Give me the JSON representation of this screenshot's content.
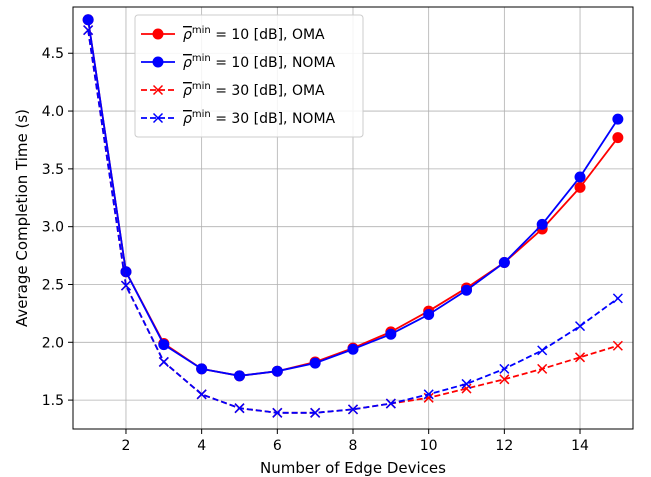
{
  "chart_data": {
    "type": "line",
    "xlabel": "Number of Edge Devices",
    "ylabel": "Average Completion Time (s)",
    "xlim": [
      0.6,
      15.4
    ],
    "ylim": [
      1.25,
      4.9
    ],
    "xticks": [
      2,
      4,
      6,
      8,
      10,
      12,
      14
    ],
    "yticks": [
      1.5,
      2.0,
      2.5,
      3.0,
      3.5,
      4.0,
      4.5
    ],
    "xtick_labels": [
      "2",
      "4",
      "6",
      "8",
      "10",
      "12",
      "14"
    ],
    "ytick_labels": [
      "1.5",
      "2.0",
      "2.5",
      "3.0",
      "3.5",
      "4.0",
      "4.5"
    ],
    "grid": true,
    "legend_position": "top-left",
    "x": [
      1,
      2,
      3,
      4,
      5,
      6,
      7,
      8,
      9,
      10,
      11,
      12,
      13,
      14,
      15
    ],
    "series": [
      {
        "name": "ρ̄ min = 10 [dB], OMA",
        "name_parts": [
          "ρ",
          "min",
          "= 10 [dB], OMA"
        ],
        "color": "#ff0000",
        "marker": "circle",
        "linestyle": "solid",
        "values": [
          4.79,
          2.61,
          1.99,
          1.77,
          1.71,
          1.75,
          1.83,
          1.95,
          2.09,
          2.27,
          2.47,
          2.69,
          2.98,
          3.34,
          3.77
        ]
      },
      {
        "name": "ρ̄ min = 10 [dB], NOMA",
        "name_parts": [
          "ρ",
          "min",
          "= 10 [dB], NOMA"
        ],
        "color": "#0000ff",
        "marker": "circle",
        "linestyle": "solid",
        "values": [
          4.79,
          2.61,
          1.98,
          1.77,
          1.71,
          1.75,
          1.82,
          1.94,
          2.07,
          2.24,
          2.45,
          2.69,
          3.02,
          3.43,
          3.93
        ]
      },
      {
        "name": "ρ̄ min = 30 [dB], OMA",
        "name_parts": [
          "ρ",
          "min",
          "= 30 [dB], OMA"
        ],
        "color": "#ff0000",
        "marker": "x",
        "linestyle": "dashed",
        "values": [
          4.7,
          2.49,
          1.83,
          1.55,
          1.43,
          1.39,
          1.39,
          1.42,
          1.47,
          1.52,
          1.6,
          1.68,
          1.77,
          1.87,
          1.97
        ]
      },
      {
        "name": "ρ̄ min = 30 [dB], NOMA",
        "name_parts": [
          "ρ",
          "min",
          "= 30 [dB], NOMA"
        ],
        "color": "#0000ff",
        "marker": "x",
        "linestyle": "dashed",
        "values": [
          4.7,
          2.49,
          1.83,
          1.55,
          1.43,
          1.39,
          1.39,
          1.42,
          1.47,
          1.55,
          1.64,
          1.77,
          1.93,
          2.14,
          2.38
        ]
      }
    ]
  }
}
